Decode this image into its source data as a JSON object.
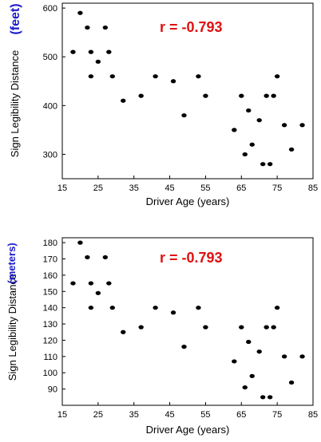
{
  "chart_data": [
    {
      "type": "scatter",
      "xlabel": "Driver Age (years)",
      "ylabel": "Sign Legibility Distance",
      "unit": "(feet)",
      "annotation": "r = -0.793",
      "xlim": [
        15,
        85
      ],
      "ylim": [
        250,
        610
      ],
      "xticks": [
        "15",
        "25",
        "35",
        "45",
        "55",
        "65",
        "75",
        "85"
      ],
      "yticks": [
        "300",
        "400",
        "500",
        "600"
      ],
      "x": [
        18,
        20,
        22,
        23,
        23,
        25,
        27,
        28,
        29,
        32,
        37,
        41,
        46,
        49,
        53,
        55,
        63,
        65,
        66,
        67,
        68,
        70,
        71,
        72,
        73,
        74,
        75,
        77,
        79,
        82
      ],
      "y": [
        510,
        590,
        560,
        510,
        460,
        490,
        560,
        510,
        460,
        410,
        420,
        460,
        450,
        380,
        460,
        420,
        350,
        420,
        300,
        390,
        320,
        370,
        280,
        420,
        280,
        420,
        460,
        360,
        310,
        360
      ]
    },
    {
      "type": "scatter",
      "xlabel": "Driver Age (years)",
      "ylabel": "Sign Legibility Distance",
      "unit": "(meters)",
      "annotation": "r = -0.793",
      "xlim": [
        15,
        85
      ],
      "ylim": [
        80,
        183
      ],
      "xticks": [
        "15",
        "25",
        "35",
        "45",
        "55",
        "65",
        "75",
        "85"
      ],
      "yticks": [
        "90",
        "100",
        "110",
        "120",
        "130",
        "140",
        "150",
        "160",
        "170",
        "180"
      ],
      "x": [
        18,
        20,
        22,
        23,
        23,
        25,
        27,
        28,
        29,
        32,
        37,
        41,
        46,
        49,
        53,
        55,
        63,
        65,
        66,
        67,
        68,
        70,
        71,
        72,
        73,
        74,
        75,
        77,
        79,
        82
      ],
      "y": [
        155,
        180,
        171,
        155,
        140,
        149,
        171,
        155,
        140,
        125,
        128,
        140,
        137,
        116,
        140,
        128,
        107,
        128,
        91,
        119,
        98,
        113,
        85,
        128,
        85,
        128,
        140,
        110,
        94,
        110
      ]
    }
  ]
}
